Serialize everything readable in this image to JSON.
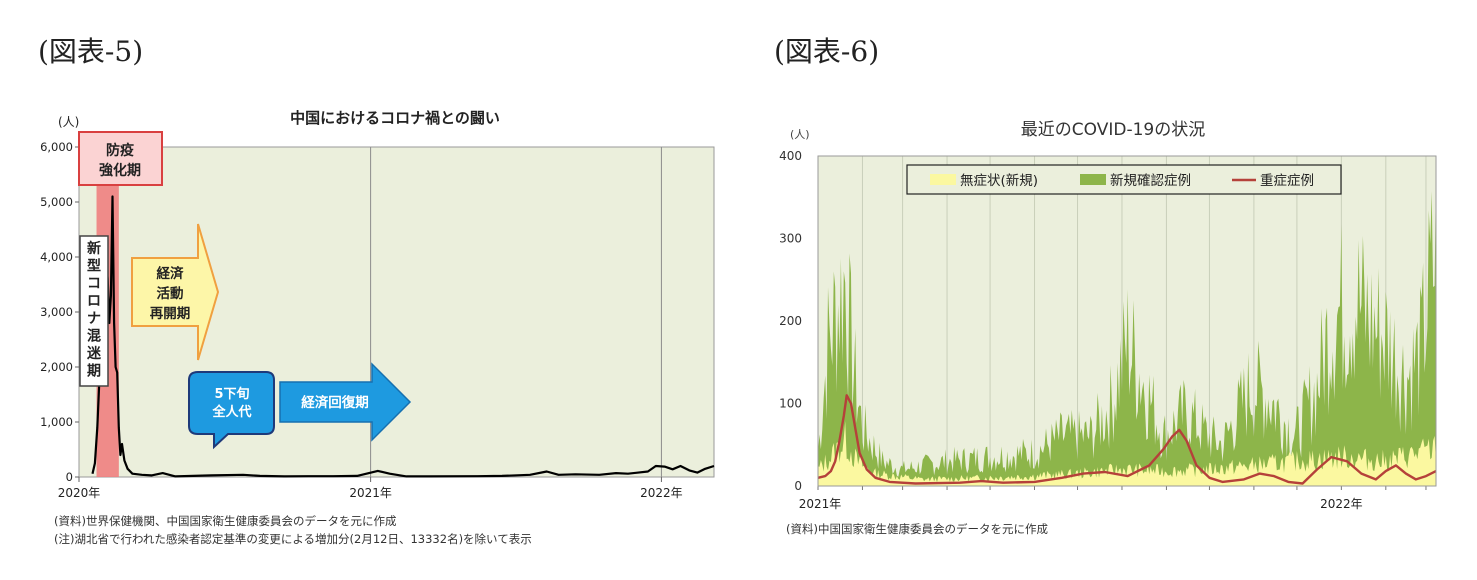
{
  "figure5": {
    "label": "(図表-5)",
    "source": "(資料)世界保健機関、中国国家衛生健康委員会のデータを元に作成",
    "note": "(注)湖北省で行われた感染者認定基準の変更による増加分(2月12日、13332名)を除いて表示"
  },
  "figure6": {
    "label": "(図表-6)",
    "source": "(資料)中国国家衛生健康委員会のデータを元に作成"
  },
  "chart_data": [
    {
      "id": "fig5",
      "type": "line",
      "title": "中国におけるコロナ禍との闘い",
      "unit_label": "(人)",
      "ylim": [
        0,
        6000
      ],
      "yticks": [
        "6,000",
        "5,000",
        "4,000",
        "3,000",
        "2,000",
        "1,000",
        "0"
      ],
      "ytick_values": [
        6000,
        5000,
        4000,
        3000,
        2000,
        1000,
        0
      ],
      "xlim": [
        "2020-01-01",
        "2022-03-08"
      ],
      "xticks": [
        {
          "date": "2020-01-01",
          "label": "2020年"
        },
        {
          "date": "2021-01-01",
          "label": "2021年"
        },
        {
          "date": "2022-01-01",
          "label": "2022年"
        }
      ],
      "grid": "yearly vertical lines",
      "series": [
        {
          "color": "#000000",
          "points": [
            [
              "2020-01-18",
              60
            ],
            [
              "2020-01-21",
              250
            ],
            [
              "2020-01-24",
              900
            ],
            [
              "2020-01-27",
              1900
            ],
            [
              "2020-01-30",
              2800
            ],
            [
              "2020-02-02",
              3300
            ],
            [
              "2020-02-04",
              3900
            ],
            [
              "2020-02-06",
              3600
            ],
            [
              "2020-02-08",
              2800
            ],
            [
              "2020-02-10",
              3300
            ],
            [
              "2020-02-12",
              5100
            ],
            [
              "2020-02-14",
              2800
            ],
            [
              "2020-02-16",
              2000
            ],
            [
              "2020-02-18",
              1900
            ],
            [
              "2020-02-20",
              900
            ],
            [
              "2020-02-22",
              400
            ],
            [
              "2020-02-24",
              600
            ],
            [
              "2020-02-27",
              300
            ],
            [
              "2020-03-02",
              150
            ],
            [
              "2020-03-08",
              60
            ],
            [
              "2020-03-20",
              40
            ],
            [
              "2020-04-01",
              30
            ],
            [
              "2020-04-15",
              70
            ],
            [
              "2020-05-01",
              10
            ],
            [
              "2020-06-15",
              30
            ],
            [
              "2020-07-25",
              40
            ],
            [
              "2020-08-15",
              20
            ],
            [
              "2020-09-15",
              10
            ],
            [
              "2020-10-15",
              15
            ],
            [
              "2020-11-15",
              15
            ],
            [
              "2020-12-15",
              20
            ],
            [
              "2021-01-10",
              110
            ],
            [
              "2021-01-25",
              60
            ],
            [
              "2021-02-15",
              10
            ],
            [
              "2021-03-15",
              10
            ],
            [
              "2021-05-15",
              15
            ],
            [
              "2021-06-15",
              20
            ],
            [
              "2021-07-20",
              40
            ],
            [
              "2021-08-10",
              100
            ],
            [
              "2021-08-25",
              40
            ],
            [
              "2021-09-15",
              50
            ],
            [
              "2021-10-15",
              40
            ],
            [
              "2021-11-05",
              70
            ],
            [
              "2021-11-20",
              60
            ],
            [
              "2021-12-15",
              100
            ],
            [
              "2021-12-25",
              200
            ],
            [
              "2022-01-05",
              190
            ],
            [
              "2022-01-15",
              140
            ],
            [
              "2022-01-25",
              200
            ],
            [
              "2022-02-05",
              120
            ],
            [
              "2022-02-15",
              80
            ],
            [
              "2022-02-25",
              150
            ],
            [
              "2022-03-08",
              200
            ]
          ]
        }
      ],
      "annotations": [
        {
          "id": "prevention",
          "text": "防疫\n強化期",
          "start": "2020-01-23",
          "end": "2020-02-20",
          "color": "#f08080",
          "border": "#d94040",
          "fill": "#fbd3d3"
        },
        {
          "id": "confusion",
          "text": "新型コロナ混迷期",
          "style": "vertical box"
        },
        {
          "id": "reopen",
          "text": "経済\n活動\n再開期",
          "style": "arrow",
          "fill": "#fdf6a8",
          "border": "#f0a040"
        },
        {
          "id": "npc",
          "text": "5下旬\n全人代",
          "style": "callout",
          "fill": "#1e9ae0"
        },
        {
          "id": "recovery",
          "text": "経済回復期",
          "style": "arrow",
          "fill": "#1e9ae0"
        }
      ],
      "colors": {
        "plot_bg": "#ebefdc",
        "plot_border": "#9a9a9a"
      }
    },
    {
      "id": "fig6",
      "type": "area",
      "title": "最近のCOVID-19の状況",
      "unit_label": "(人)",
      "ylim": [
        0,
        400
      ],
      "yticks": [
        "400",
        "300",
        "200",
        "100",
        "0"
      ],
      "ytick_values": [
        400,
        300,
        200,
        100,
        0
      ],
      "xlim": [
        "2021-01-01",
        "2022-03-08"
      ],
      "xticks": [
        {
          "date": "2021-01-01",
          "label": "2021年"
        },
        {
          "date": "2022-01-01",
          "label": "2022年"
        }
      ],
      "grid": "monthly vertical lines",
      "legend": "top-center",
      "series": [
        {
          "name": "無症状(新規)",
          "color": "#fbf8a0",
          "kind": "area",
          "points": [
            [
              "2021-01-01",
              20
            ],
            [
              "2021-01-10",
              35
            ],
            [
              "2021-01-20",
              55
            ],
            [
              "2021-01-28",
              30
            ],
            [
              "2021-02-10",
              15
            ],
            [
              "2021-03-15",
              8
            ],
            [
              "2021-05-01",
              10
            ],
            [
              "2021-06-01",
              12
            ],
            [
              "2021-07-01",
              15
            ],
            [
              "2021-08-01",
              20
            ],
            [
              "2021-09-01",
              18
            ],
            [
              "2021-10-01",
              20
            ],
            [
              "2021-11-01",
              25
            ],
            [
              "2021-12-01",
              30
            ],
            [
              "2022-01-01",
              35
            ],
            [
              "2022-02-01",
              30
            ],
            [
              "2022-03-08",
              45
            ]
          ]
        },
        {
          "name": "新規確認症例",
          "color": "#8db54a",
          "kind": "area",
          "points": [
            [
              "2021-01-01",
              40
            ],
            [
              "2021-01-08",
              170
            ],
            [
              "2021-01-15",
              220
            ],
            [
              "2021-01-20",
              250
            ],
            [
              "2021-01-25",
              150
            ],
            [
              "2021-02-01",
              70
            ],
            [
              "2021-02-15",
              30
            ],
            [
              "2021-03-01",
              20
            ],
            [
              "2021-04-01",
              30
            ],
            [
              "2021-05-01",
              35
            ],
            [
              "2021-06-01",
              40
            ],
            [
              "2021-06-20",
              60
            ],
            [
              "2021-07-10",
              60
            ],
            [
              "2021-07-25",
              100
            ],
            [
              "2021-08-05",
              175
            ],
            [
              "2021-08-15",
              130
            ],
            [
              "2021-08-30",
              60
            ],
            [
              "2021-09-15",
              90
            ],
            [
              "2021-09-30",
              60
            ],
            [
              "2021-10-10",
              50
            ],
            [
              "2021-10-30",
              120
            ],
            [
              "2021-11-10",
              110
            ],
            [
              "2021-11-30",
              60
            ],
            [
              "2021-12-15",
              120
            ],
            [
              "2021-12-25",
              200
            ],
            [
              "2022-01-10",
              230
            ],
            [
              "2022-01-20",
              200
            ],
            [
              "2022-02-01",
              180
            ],
            [
              "2022-02-15",
              130
            ],
            [
              "2022-02-25",
              160
            ],
            [
              "2022-03-08",
              290
            ]
          ]
        },
        {
          "name": "重症症例",
          "color": "#b5413a",
          "kind": "line",
          "points": [
            [
              "2021-01-01",
              10
            ],
            [
              "2021-01-06",
              12
            ],
            [
              "2021-01-10",
              18
            ],
            [
              "2021-01-13",
              30
            ],
            [
              "2021-01-16",
              55
            ],
            [
              "2021-01-19",
              85
            ],
            [
              "2021-01-21",
              110
            ],
            [
              "2021-01-24",
              100
            ],
            [
              "2021-01-27",
              70
            ],
            [
              "2021-01-30",
              40
            ],
            [
              "2021-02-04",
              20
            ],
            [
              "2021-02-10",
              10
            ],
            [
              "2021-02-20",
              5
            ],
            [
              "2021-03-10",
              3
            ],
            [
              "2021-04-10",
              4
            ],
            [
              "2021-04-25",
              6
            ],
            [
              "2021-05-10",
              4
            ],
            [
              "2021-06-01",
              5
            ],
            [
              "2021-06-20",
              10
            ],
            [
              "2021-07-05",
              15
            ],
            [
              "2021-07-20",
              17
            ],
            [
              "2021-08-05",
              12
            ],
            [
              "2021-08-20",
              25
            ],
            [
              "2021-08-30",
              45
            ],
            [
              "2021-09-05",
              60
            ],
            [
              "2021-09-10",
              68
            ],
            [
              "2021-09-15",
              55
            ],
            [
              "2021-09-22",
              25
            ],
            [
              "2021-10-01",
              10
            ],
            [
              "2021-10-10",
              5
            ],
            [
              "2021-10-25",
              8
            ],
            [
              "2021-11-05",
              15
            ],
            [
              "2021-11-15",
              12
            ],
            [
              "2021-11-25",
              5
            ],
            [
              "2021-12-05",
              3
            ],
            [
              "2021-12-15",
              20
            ],
            [
              "2021-12-25",
              35
            ],
            [
              "2022-01-05",
              30
            ],
            [
              "2022-01-15",
              15
            ],
            [
              "2022-01-25",
              8
            ],
            [
              "2022-02-01",
              18
            ],
            [
              "2022-02-08",
              25
            ],
            [
              "2022-02-15",
              15
            ],
            [
              "2022-02-22",
              8
            ],
            [
              "2022-03-01",
              12
            ],
            [
              "2022-03-08",
              18
            ]
          ]
        }
      ],
      "colors": {
        "plot_bg": "#ebefdc",
        "plot_border": "#9a9a9a",
        "legend_bg": "#ebefdc"
      }
    }
  ]
}
